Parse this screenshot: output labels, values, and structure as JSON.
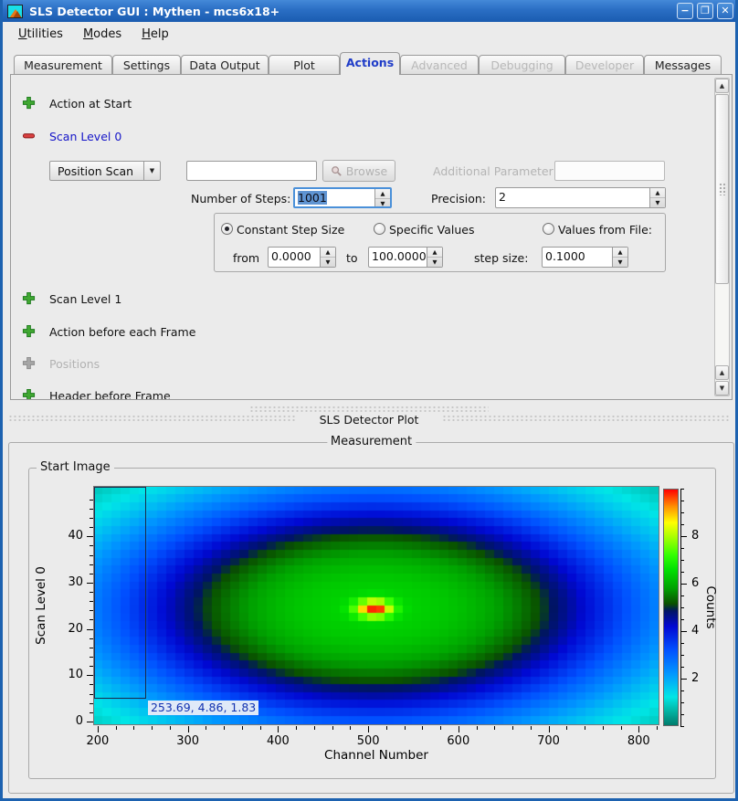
{
  "window": {
    "title": "SLS Detector GUI : Mythen - mcs6x18+"
  },
  "titlebar": {
    "minimize": "−",
    "maximize": "❐",
    "close": "✕"
  },
  "menu": {
    "items": [
      {
        "accel": "U",
        "rest": "tilities"
      },
      {
        "accel": "M",
        "rest": "odes"
      },
      {
        "accel": "H",
        "rest": "elp"
      }
    ]
  },
  "tabs": [
    {
      "label": "Measurement"
    },
    {
      "label": "Settings"
    },
    {
      "label": "Data Output"
    },
    {
      "label": "Plot"
    },
    {
      "label": "Actions",
      "active": true
    },
    {
      "label": "Advanced",
      "disabled": true
    },
    {
      "label": "Debugging",
      "disabled": true
    },
    {
      "label": "Developer",
      "disabled": true
    },
    {
      "label": "Messages"
    }
  ],
  "actions": {
    "items": [
      {
        "label": "Action at Start",
        "icon": "plus-green"
      },
      {
        "label": "Scan Level 0",
        "icon": "minus-red"
      },
      {
        "label": "Scan Level 1",
        "icon": "plus-green"
      },
      {
        "label": "Action before each Frame",
        "icon": "plus-green"
      },
      {
        "label": "Positions",
        "icon": "plus-gray",
        "disabled": true
      },
      {
        "label": "Header before Frame",
        "icon": "plus-green"
      }
    ],
    "scan0": {
      "mode": "Position Scan",
      "script_value": "",
      "browse_label": "Browse",
      "additional_parameter_label": "Additional Parameter:",
      "additional_parameter_value": "",
      "steps_label": "Number of Steps:",
      "steps_value": "1001",
      "precision_label": "Precision:",
      "precision_value": "2",
      "radio_constant": "Constant Step Size",
      "radio_specific": "Specific Values",
      "radio_file": "Values from File:",
      "from_label": "from",
      "from_value": "0.0000",
      "to_label": "to",
      "to_value": "100.0000",
      "step_label": "step size:",
      "step_value": "0.1000"
    }
  },
  "dock": {
    "title": "SLS Detector Plot"
  },
  "plot": {
    "group_title": "Measurement",
    "frame_title": "Start Image",
    "tooltip": "253.69, 4.86, 1.83"
  },
  "chart_data": {
    "type": "heatmap",
    "title": "Start Image",
    "xlabel": "Channel Number",
    "ylabel": "Scan Level 0",
    "zlabel": "Counts",
    "xlim": [
      196,
      822
    ],
    "ylim": [
      -0.6,
      50.7
    ],
    "zlim": [
      0,
      10
    ],
    "xticks": [
      200,
      300,
      400,
      500,
      600,
      700,
      800
    ],
    "yticks": [
      0,
      10,
      20,
      30,
      40
    ],
    "zticks": [
      2,
      4,
      6,
      8
    ],
    "x_minor_step": 20,
    "y_minor_step": 2,
    "z_minor_step": 0.5,
    "grid": false,
    "legend_position": "right-colorbar",
    "grid_cells": [
      62,
      30
    ],
    "distribution": {
      "model": "elliptical-gaussian",
      "center": [
        507,
        24.3
      ],
      "sigma": [
        220,
        19
      ],
      "amplitude": 6.2,
      "base": 0.25,
      "power": 1.35,
      "hotspot": {
        "center": [
          507,
          24.3
        ],
        "sigma": [
          14,
          1.3
        ],
        "amplitude": 3.7
      },
      "clamp": 9.8
    },
    "colormap": [
      [
        0.0,
        "#007c6c"
      ],
      [
        0.06,
        "#00b4a4"
      ],
      [
        0.12,
        "#00e6e6"
      ],
      [
        0.22,
        "#0096ff"
      ],
      [
        0.32,
        "#0050ff"
      ],
      [
        0.42,
        "#0008d2"
      ],
      [
        0.485,
        "#001464"
      ],
      [
        0.515,
        "#0a5000"
      ],
      [
        0.58,
        "#00a000"
      ],
      [
        0.66,
        "#00e000"
      ],
      [
        0.72,
        "#30ff00"
      ],
      [
        0.8,
        "#aaff00"
      ],
      [
        0.86,
        "#ffff00"
      ],
      [
        0.93,
        "#ff8c00"
      ],
      [
        1.0,
        "#ff0000"
      ]
    ],
    "zoom_rect": {
      "x": [
        196,
        253.69
      ],
      "y": [
        4.86,
        50.7
      ]
    },
    "cursor_readout": "253.69, 4.86, 1.83"
  }
}
